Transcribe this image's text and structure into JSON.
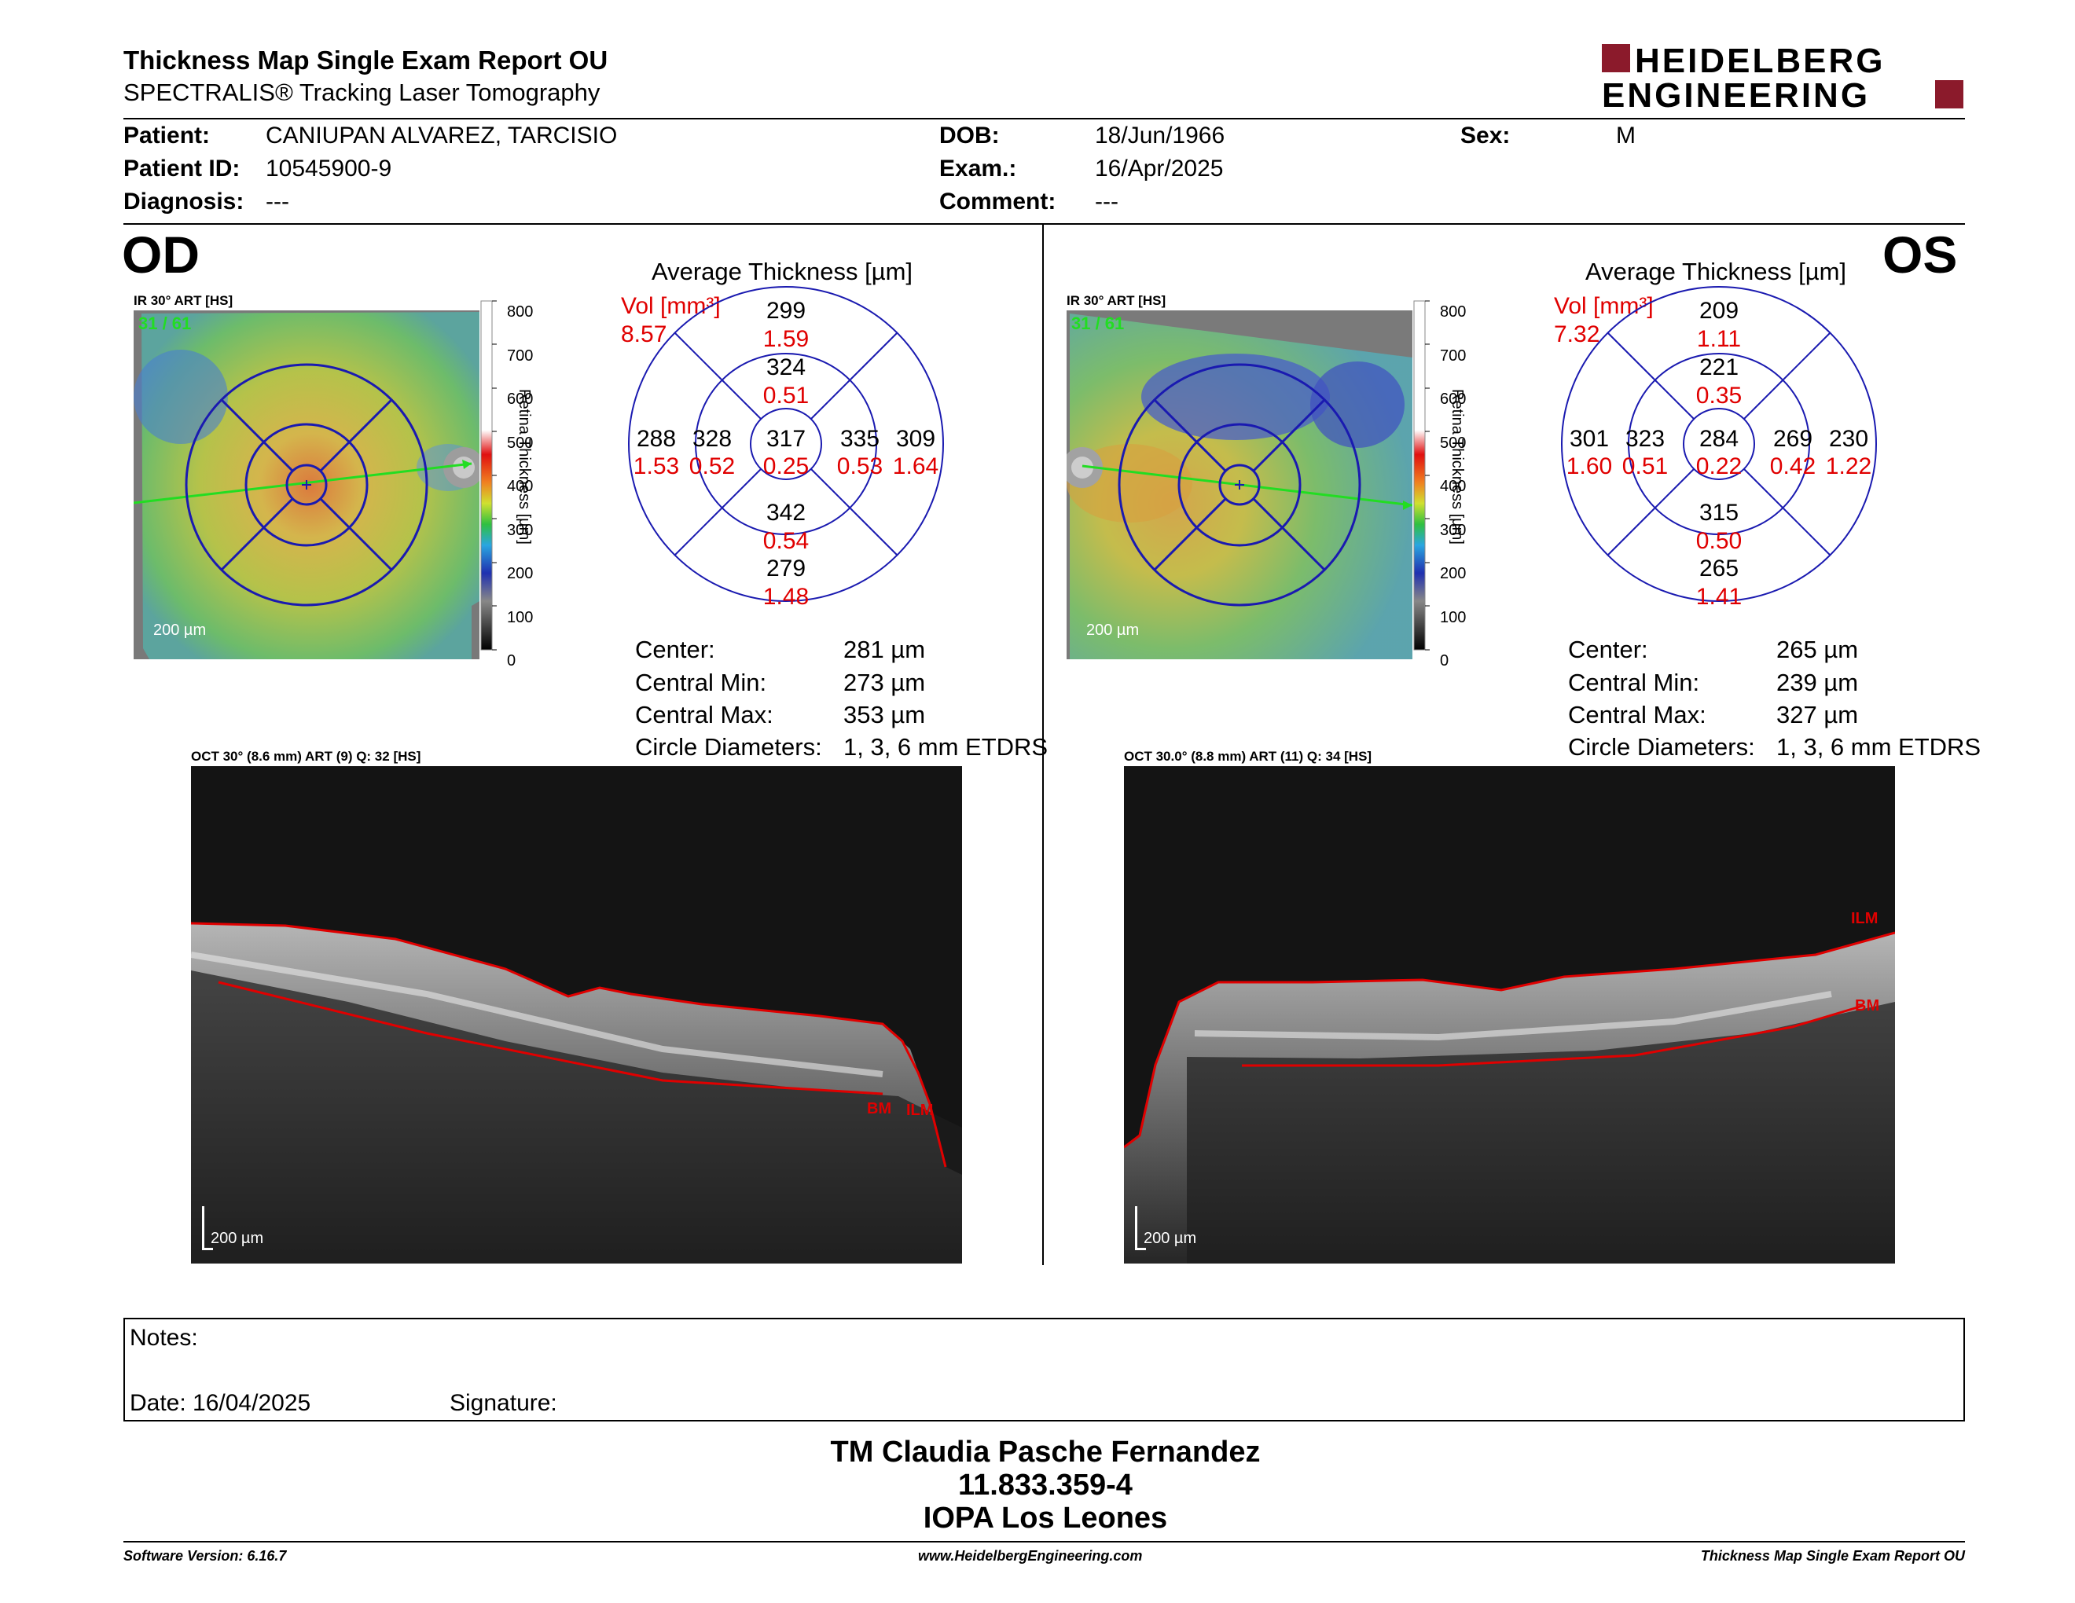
{
  "header": {
    "title": "Thickness Map Single Exam Report OU",
    "subtitle": "SPECTRALIS® Tracking Laser Tomography",
    "logo_line1": "HEIDELBERG",
    "logo_line2": "ENGINEERING"
  },
  "patient": {
    "patient_label": "Patient:",
    "patient_value": "CANIUPAN ALVAREZ, TARCISIO",
    "id_label": "Patient ID:",
    "id_value": "10545900-9",
    "diagnosis_label": "Diagnosis:",
    "diagnosis_value": "---",
    "dob_label": "DOB:",
    "dob_value": "18/Jun/1966",
    "exam_label": "Exam.:",
    "exam_value": "16/Apr/2025",
    "comment_label": "Comment:",
    "comment_value": "---",
    "sex_label": "Sex:",
    "sex_value": "M"
  },
  "od": {
    "eye": "OD",
    "ir_label": "IR 30° ART [HS]",
    "frame": "31 / 61",
    "scalebar": "200 µm",
    "avg_title": "Average Thickness [µm]",
    "vol_label": "Vol [mm³]",
    "vol_value": "8.57",
    "grid": {
      "center_t": "317",
      "center_v": "0.25",
      "inner_sup_t": "324",
      "inner_sup_v": "0.51",
      "inner_inf_t": "342",
      "inner_inf_v": "0.54",
      "inner_left_t": "328",
      "inner_left_v": "0.52",
      "inner_right_t": "335",
      "inner_right_v": "0.53",
      "outer_sup_t": "299",
      "outer_sup_v": "1.59",
      "outer_inf_t": "279",
      "outer_inf_v": "1.48",
      "outer_left_t": "288",
      "outer_left_v": "1.53",
      "outer_right_t": "309",
      "outer_right_v": "1.64"
    },
    "stats": {
      "center_label": "Center:",
      "center_value": "281 µm",
      "min_label": "Central Min:",
      "min_value": "273 µm",
      "max_label": "Central Max:",
      "max_value": "353 µm",
      "diam_label": "Circle Diameters:",
      "diam_value": "1, 3, 6 mm ETDRS"
    },
    "oct_label": "OCT 30° (8.6 mm) ART (9) Q: 32 [HS]",
    "oct_scalebar": "200 µm",
    "ilm": "ILM",
    "bm": "BM"
  },
  "os": {
    "eye": "OS",
    "ir_label": "IR 30° ART [HS]",
    "frame": "31 / 61",
    "scalebar": "200 µm",
    "avg_title": "Average Thickness [µm]",
    "vol_label": "Vol [mm³]",
    "vol_value": "7.32",
    "grid": {
      "center_t": "284",
      "center_v": "0.22",
      "inner_sup_t": "221",
      "inner_sup_v": "0.35",
      "inner_inf_t": "315",
      "inner_inf_v": "0.50",
      "inner_left_t": "323",
      "inner_left_v": "0.51",
      "inner_right_t": "269",
      "inner_right_v": "0.42",
      "outer_sup_t": "209",
      "outer_sup_v": "1.11",
      "outer_inf_t": "265",
      "outer_inf_v": "1.41",
      "outer_left_t": "301",
      "outer_left_v": "1.60",
      "outer_right_t": "230",
      "outer_right_v": "1.22"
    },
    "stats": {
      "center_label": "Center:",
      "center_value": "265 µm",
      "min_label": "Central Min:",
      "min_value": "239 µm",
      "max_label": "Central Max:",
      "max_value": "327 µm",
      "diam_label": "Circle Diameters:",
      "diam_value": "1, 3, 6 mm ETDRS"
    },
    "oct_label": "OCT 30.0° (8.8 mm) ART (11) Q: 34 [HS]",
    "oct_scalebar": "200 µm",
    "ilm": "ILM",
    "bm": "BM"
  },
  "color_scale": {
    "ticks": [
      "800",
      "700",
      "600",
      "500",
      "400",
      "300",
      "200",
      "100",
      "0"
    ],
    "label": "Retina Thickness [µm]"
  },
  "notes": {
    "notes_label": "Notes:",
    "date_label": "Date: 16/04/2025",
    "signature_label": "Signature:"
  },
  "signer": {
    "name": "TM Claudia Pasche Fernandez",
    "id": "11.833.359-4",
    "institution": "IOPA Los Leones"
  },
  "footer": {
    "software": "Software Version: 6.16.7",
    "website": "www.HeidelbergEngineering.com",
    "report": "Thickness Map Single Exam Report OU"
  }
}
